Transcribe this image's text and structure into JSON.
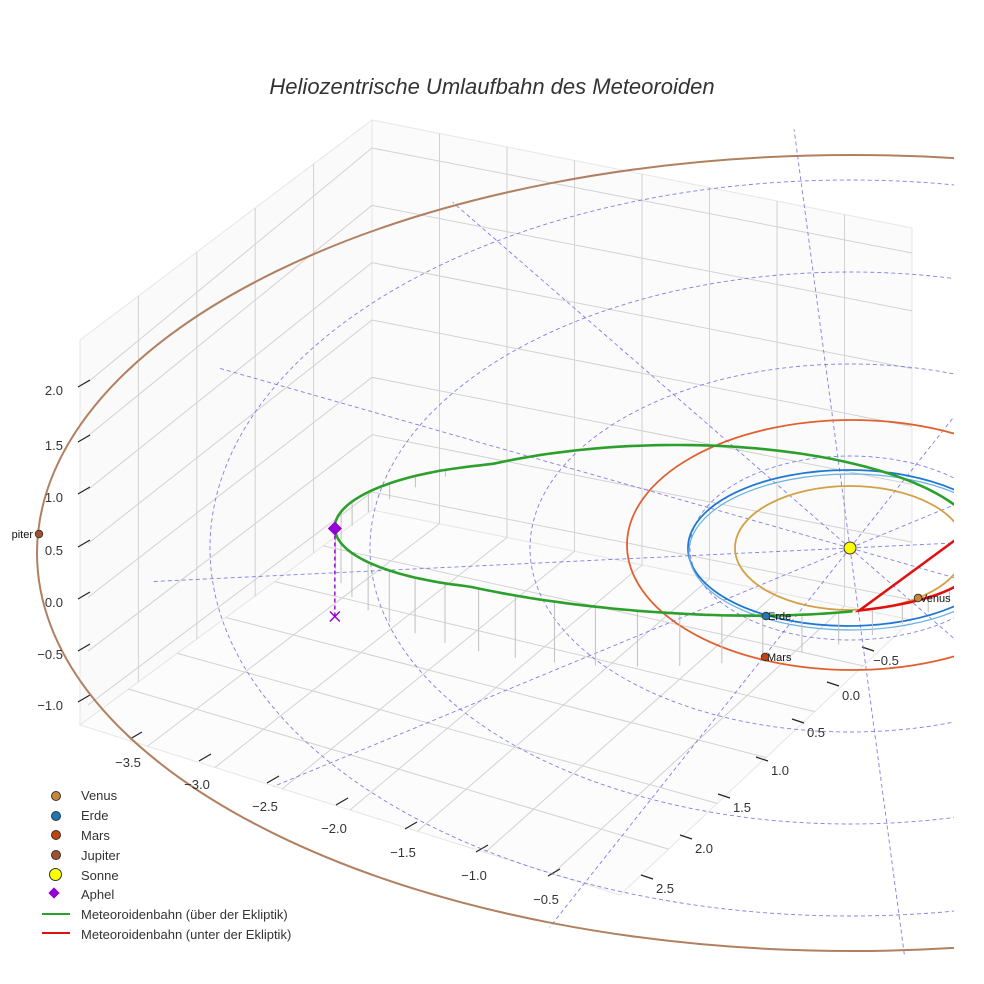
{
  "chart_data": {
    "type": "line",
    "projection": "3d",
    "title": "Heliozentrische Umlaufbahn des Meteoroiden",
    "xlabel": "",
    "ylabel": "",
    "zlabel": "",
    "grid": true,
    "legend_position": "bottom-left",
    "x_ticks": [
      "−3.5",
      "−3.0",
      "−2.5",
      "−2.0",
      "−1.5",
      "−1.0",
      "−0.5"
    ],
    "y_ticks": [
      "−0.5",
      "0.0",
      "0.5",
      "1.0",
      "1.5",
      "2.0",
      "2.5"
    ],
    "z_ticks": [
      "2.0",
      "1.5",
      "1.0",
      "0.5",
      "0.0",
      "−0.5",
      "−1.0"
    ],
    "xlim": [
      -3.8,
      0.5
    ],
    "ylim": [
      -0.8,
      2.8
    ],
    "zlim": [
      -1.2,
      2.3
    ],
    "series": [
      {
        "name": "Venus",
        "kind": "marker",
        "color": "#c8863a"
      },
      {
        "name": "Erde",
        "kind": "marker",
        "color": "#1f77b4"
      },
      {
        "name": "Mars",
        "kind": "marker",
        "color": "#c1440e"
      },
      {
        "name": "Jupiter",
        "kind": "marker",
        "color": "#a0522d"
      },
      {
        "name": "Sonne",
        "kind": "marker-large",
        "color": "#ffff00"
      },
      {
        "name": "Aphel",
        "kind": "diamond",
        "color": "#9400d3"
      },
      {
        "name": "Meteoroidenbahn (über der Ekliptik)",
        "kind": "line",
        "color": "#2ca02c"
      },
      {
        "name": "Meteoroidenbahn (unter der Ekliptik)",
        "kind": "line",
        "color": "#e01010"
      }
    ],
    "orbits": [
      {
        "body": "Venus",
        "radius_au": 0.72,
        "color": "#d4a046"
      },
      {
        "body": "Erde",
        "radius_au": 1.0,
        "color": "#1f77d4"
      },
      {
        "body": "Mars",
        "radius_au": 1.52,
        "color": "#e06030"
      },
      {
        "body": "Jupiter",
        "radius_au": 5.2,
        "color": "#b08060"
      }
    ],
    "planet_labels": [
      "Venus",
      "Erde",
      "Mars",
      "piter"
    ],
    "meteoroid_orbit": {
      "perihelion_au": 0.9,
      "aphelion_au": 3.5,
      "max_height_au": 1.5
    },
    "ecliptic_grid": {
      "rings_au": [
        1,
        2,
        3,
        4
      ],
      "spokes": 12,
      "color": "#6a6ae0"
    }
  }
}
